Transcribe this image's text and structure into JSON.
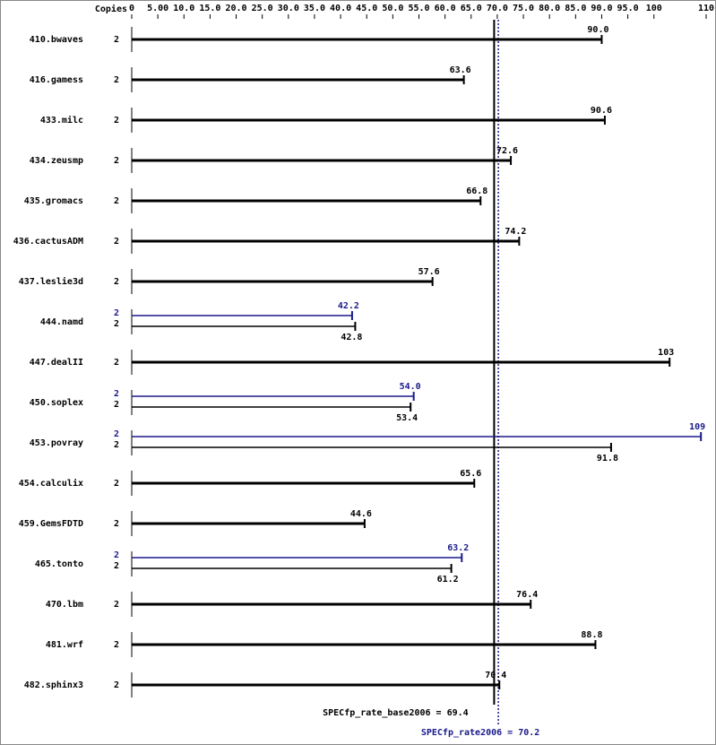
{
  "chart_data": {
    "type": "bar",
    "copies_header": "Copies",
    "categories": [
      "410.bwaves",
      "416.gamess",
      "433.milc",
      "434.zeusmp",
      "435.gromacs",
      "436.cactusADM",
      "437.leslie3d",
      "444.namd",
      "447.dealII",
      "450.soplex",
      "453.povray",
      "454.calculix",
      "459.GemsFDTD",
      "465.tonto",
      "470.lbm",
      "481.wrf",
      "482.sphinx3"
    ],
    "series": [
      {
        "color": "#000000",
        "copies": [
          2,
          2,
          2,
          2,
          2,
          2,
          2,
          2,
          2,
          2,
          2,
          2,
          2,
          2,
          2,
          2,
          2
        ],
        "values": [
          90.0,
          63.6,
          90.6,
          72.6,
          66.8,
          74.2,
          57.6,
          42.8,
          103,
          53.4,
          91.8,
          65.6,
          44.6,
          61.2,
          76.4,
          88.8,
          70.4
        ],
        "value_labels": [
          "90.0",
          "63.6",
          "90.6",
          "72.6",
          "66.8",
          "74.2",
          "57.6",
          "42.8",
          "103",
          "53.4",
          "91.8",
          "65.6",
          "44.6",
          "61.2",
          "76.4",
          "88.8",
          "70.4"
        ]
      },
      {
        "color": "#1a1a8c",
        "copies": [
          null,
          null,
          null,
          null,
          null,
          null,
          null,
          2,
          null,
          2,
          2,
          null,
          null,
          2,
          null,
          null,
          null
        ],
        "values": [
          null,
          null,
          null,
          null,
          null,
          null,
          null,
          42.2,
          null,
          54.0,
          109,
          null,
          null,
          63.2,
          null,
          null,
          null
        ],
        "value_labels": [
          null,
          null,
          null,
          null,
          null,
          null,
          null,
          "42.2",
          null,
          "54.0",
          "109",
          null,
          null,
          "63.2",
          null,
          null,
          null
        ]
      }
    ],
    "xlim": [
      0,
      110
    ],
    "xticks": [
      0,
      {
        "value": 5,
        "label": "5.00"
      },
      {
        "value": 10,
        "label": "10.0"
      },
      {
        "value": 15,
        "label": "15.0"
      },
      {
        "value": 20,
        "label": "20.0"
      },
      {
        "value": 25,
        "label": "25.0"
      },
      {
        "value": 30,
        "label": "30.0"
      },
      {
        "value": 35,
        "label": "35.0"
      },
      {
        "value": 40,
        "label": "40.0"
      },
      {
        "value": 45,
        "label": "45.0"
      },
      {
        "value": 50,
        "label": "50.0"
      },
      {
        "value": 55,
        "label": "55.0"
      },
      {
        "value": 60,
        "label": "60.0"
      },
      {
        "value": 65,
        "label": "65.0"
      },
      {
        "value": 70,
        "label": "70.0"
      },
      {
        "value": 75,
        "label": "75.0"
      },
      {
        "value": 80,
        "label": "80.0"
      },
      {
        "value": 85,
        "label": "85.0"
      },
      {
        "value": 90,
        "label": "90.0"
      },
      {
        "value": 95,
        "label": "95.0"
      },
      100,
      110
    ],
    "reference_lines": [
      {
        "label": "SPECfp_rate_base2006 = 69.4",
        "value": 69.4,
        "color": "#000000"
      },
      {
        "label": "SPECfp_rate2006 = 70.2",
        "value": 70.2,
        "color": "#1a1a8c"
      }
    ]
  }
}
